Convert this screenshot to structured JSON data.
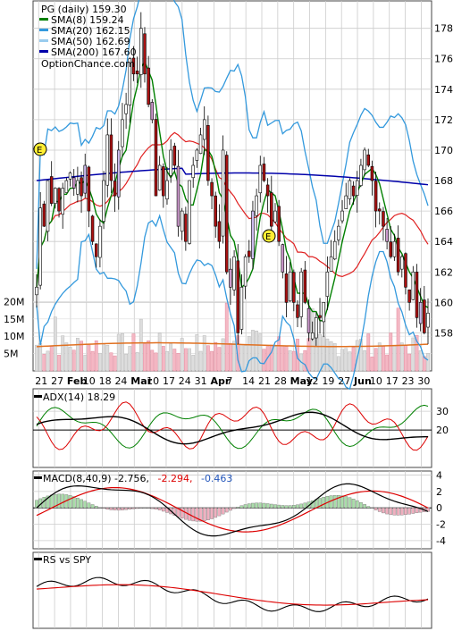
{
  "chart_data": [
    {
      "type": "candlestick",
      "title": "PG (daily) 159.30",
      "ylim": [
        155.5,
        179.8
      ],
      "y_ticks": [
        "178",
        "176",
        "174",
        "172",
        "170",
        "168",
        "166",
        "164",
        "162",
        "160",
        "158"
      ],
      "x_ticks": [
        {
          "label": "21",
          "b": false
        },
        {
          "label": "27",
          "b": false
        },
        {
          "label": "Feb",
          "b": true
        },
        {
          "label": "10",
          "b": false
        },
        {
          "label": "18",
          "b": false
        },
        {
          "label": "24",
          "b": false
        },
        {
          "label": "Mar",
          "b": true
        },
        {
          "label": "10",
          "b": false
        },
        {
          "label": "17",
          "b": false
        },
        {
          "label": "24",
          "b": false
        },
        {
          "label": "31",
          "b": false
        },
        {
          "label": "Apr",
          "b": true
        },
        {
          "label": "7",
          "b": false
        },
        {
          "label": "14",
          "b": false
        },
        {
          "label": "21",
          "b": false
        },
        {
          "label": "28",
          "b": false
        },
        {
          "label": "May",
          "b": true
        },
        {
          "label": "12",
          "b": false
        },
        {
          "label": "19",
          "b": false
        },
        {
          "label": "27",
          "b": false
        },
        {
          "label": "Jun",
          "b": true
        },
        {
          "label": "10",
          "b": false
        },
        {
          "label": "17",
          "b": false
        },
        {
          "label": "23",
          "b": false
        },
        {
          "label": "30",
          "b": false
        }
      ],
      "legend": [
        {
          "text": "PG (daily) 159.30",
          "color": "#000000"
        },
        {
          "text": "SMA(8) 159.24",
          "color": "#008000"
        },
        {
          "text": "SMA(20) 162.15",
          "color": "#3399dd"
        },
        {
          "text": "SMA(50) 162.69",
          "color": "#99ccee"
        },
        {
          "text": "SMA(200) 167.60",
          "color": "#0000aa"
        },
        {
          "text": "OptionChance.com",
          "color": ""
        }
      ],
      "events": [
        "E",
        "E"
      ],
      "closes": [
        161,
        166.2,
        165,
        168,
        166.5,
        167.5,
        166,
        167.5,
        168,
        168.5,
        167.5,
        168,
        167,
        169,
        166,
        164,
        163,
        165,
        168,
        171,
        168,
        167,
        170,
        172,
        173,
        176,
        175,
        175,
        178,
        175,
        173,
        172,
        167,
        169,
        167,
        168,
        170,
        169,
        165,
        166,
        164,
        168,
        169,
        170,
        171,
        172,
        168,
        167,
        165,
        164,
        170,
        162,
        161,
        163,
        158,
        161,
        163,
        163,
        166,
        167,
        169,
        168,
        167,
        165,
        166,
        164,
        162,
        160,
        162,
        160,
        159,
        162,
        160,
        158,
        158,
        159,
        159,
        160,
        162,
        163,
        164,
        165,
        166,
        167,
        168,
        167,
        168,
        169,
        170,
        169,
        168,
        166,
        166,
        165,
        164,
        163,
        164,
        162,
        163,
        161,
        160,
        162,
        159,
        160,
        158,
        159.3
      ],
      "volume": {
        "ylim": [
          0,
          25000000
        ],
        "ticks": [
          "20M",
          "15M",
          "10M",
          "5M"
        ]
      }
    },
    {
      "type": "line",
      "title": "ADX(14) 18.29",
      "ylim": [
        0,
        42
      ],
      "y_ticks": [
        "30",
        "20"
      ]
    },
    {
      "type": "line",
      "title_parts": [
        {
          "text": "MACD(8,40,9) -2.756,",
          "color": "#000000"
        },
        {
          "text": "-2.294,",
          "color": "#dd0000"
        },
        {
          "text": "-0.463",
          "color": "#2255bb"
        }
      ],
      "ylim": [
        -5,
        4.5
      ],
      "y_ticks": [
        "4",
        "2",
        "0",
        "-2",
        "-4"
      ]
    },
    {
      "type": "line",
      "title": "RS vs SPY",
      "series": []
    }
  ]
}
